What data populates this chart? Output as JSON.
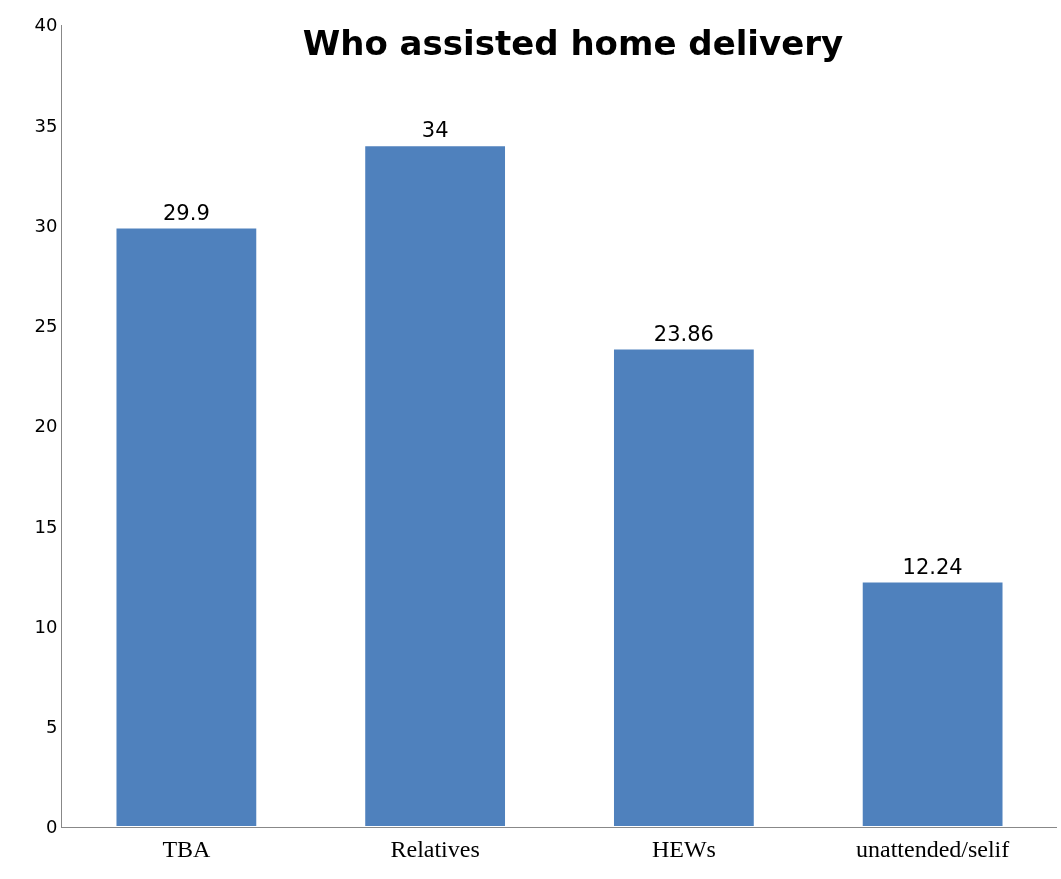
{
  "chart_data": {
    "type": "bar",
    "title": "Who assisted home delivery",
    "categories": [
      "TBA",
      "Relatives",
      "HEWs",
      "unattended/selif"
    ],
    "values": [
      29.9,
      34,
      23.86,
      12.24
    ],
    "color": "#4f81bd",
    "ylim": [
      0,
      40
    ],
    "yticks": [
      0,
      5,
      10,
      15,
      20,
      25,
      30,
      35,
      40
    ],
    "data_labels": true
  }
}
